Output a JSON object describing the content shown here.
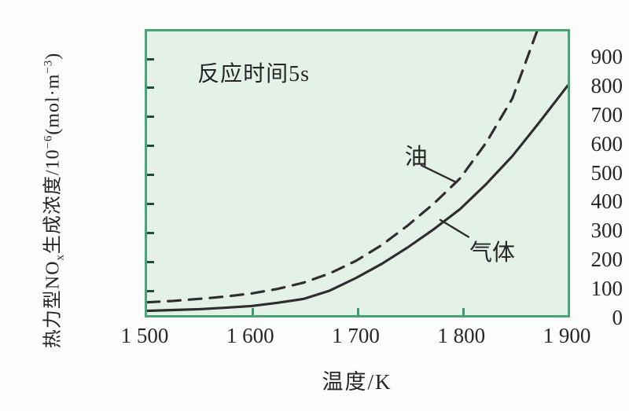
{
  "figure": {
    "background": "#fcfcfa"
  },
  "chart_data": {
    "type": "line",
    "title": "",
    "note": {
      "text": "反应时间5s",
      "t": 1601,
      "v": 855
    },
    "xlabel": "温度/K",
    "ylabel_plain": "热力型NOx生成浓度/10−6(mol·m−3)",
    "ylabel_parts": [
      {
        "text": "热力型NO"
      },
      {
        "sub": "x"
      },
      {
        "text": "生成浓度/10"
      },
      {
        "sup": "−6"
      },
      {
        "text": "(mol·m"
      },
      {
        "sup": "−3"
      },
      {
        "text": ")"
      }
    ],
    "x_domain": [
      1500,
      1903
    ],
    "y_domain": [
      0,
      995
    ],
    "grid": false,
    "legend_position": "inline-annotations",
    "x_ticks": [
      {
        "value": 1500,
        "label": "1 500",
        "mark": false
      },
      {
        "value": 1600,
        "label": "1 600",
        "mark": true
      },
      {
        "value": 1700,
        "label": "1 700",
        "mark": true
      },
      {
        "value": 1800,
        "label": "1 800",
        "mark": true
      },
      {
        "value": 1900,
        "label": "1 900",
        "mark": false
      }
    ],
    "y_ticks": [
      {
        "value": 0,
        "label": "0",
        "mark": false
      },
      {
        "value": 100,
        "label": "100",
        "mark": true
      },
      {
        "value": 200,
        "label": "200",
        "mark": true
      },
      {
        "value": 300,
        "label": "300",
        "mark": true
      },
      {
        "value": 400,
        "label": "400",
        "mark": true
      },
      {
        "value": 500,
        "label": "500",
        "mark": true
      },
      {
        "value": 600,
        "label": "600",
        "mark": true
      },
      {
        "value": 700,
        "label": "700",
        "mark": true
      },
      {
        "value": 800,
        "label": "800",
        "mark": true
      },
      {
        "value": 900,
        "label": "900",
        "mark": true
      }
    ],
    "series": [
      {
        "id": "oil",
        "name": "油",
        "style": "dashed",
        "points": [
          [
            1500,
            45
          ],
          [
            1525,
            50
          ],
          [
            1550,
            57
          ],
          [
            1575,
            65
          ],
          [
            1600,
            76
          ],
          [
            1625,
            92
          ],
          [
            1650,
            114
          ],
          [
            1675,
            146
          ],
          [
            1700,
            190
          ],
          [
            1725,
            246
          ],
          [
            1750,
            315
          ],
          [
            1775,
            392
          ],
          [
            1800,
            480
          ],
          [
            1825,
            605
          ],
          [
            1850,
            760
          ],
          [
            1876,
            1020
          ]
        ]
      },
      {
        "id": "gas",
        "name": "气体",
        "style": "solid",
        "points": [
          [
            1500,
            15
          ],
          [
            1525,
            18
          ],
          [
            1550,
            21
          ],
          [
            1575,
            26
          ],
          [
            1600,
            32
          ],
          [
            1625,
            43
          ],
          [
            1650,
            57
          ],
          [
            1675,
            86
          ],
          [
            1700,
            130
          ],
          [
            1725,
            180
          ],
          [
            1750,
            238
          ],
          [
            1775,
            302
          ],
          [
            1800,
            372
          ],
          [
            1825,
            460
          ],
          [
            1850,
            558
          ],
          [
            1875,
            672
          ],
          [
            1903,
            805
          ]
        ]
      }
    ],
    "annotations": [
      {
        "id": "oil",
        "text": "油",
        "t": 1755,
        "v": 570,
        "leader": {
          "from": [
            1763,
            525
          ],
          "to": [
            1795,
            468
          ]
        }
      },
      {
        "id": "gas",
        "text": "气体",
        "t": 1827,
        "v": 238,
        "leader": {
          "from": [
            1808,
            274
          ],
          "to": [
            1781,
            334
          ]
        }
      }
    ],
    "colors": {
      "plot_bg": "#e4f1e6",
      "plot_border": "#46a478",
      "curve": "#2e2e2e",
      "tick_left": "#1e4f3b",
      "tick_bottom": "#3f9671",
      "text": "#262626"
    }
  }
}
